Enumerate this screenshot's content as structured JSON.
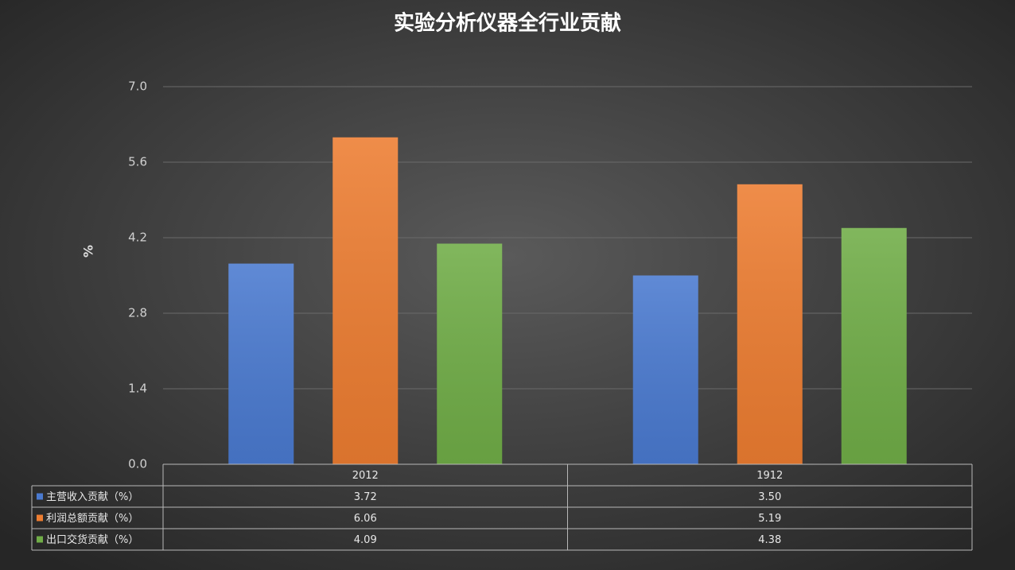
{
  "chart_data": {
    "type": "bar",
    "title": "实验分析仪器全行业贡献",
    "ylabel": "%",
    "categories": [
      "2012",
      "1912"
    ],
    "series": [
      {
        "name": "主营收入贡献（%）",
        "color": "#4a7ad0",
        "values": [
          3.72,
          3.5
        ],
        "value_labels": [
          "3.72",
          "3.50"
        ]
      },
      {
        "name": "利润总额贡献（%）",
        "color": "#ed7d31",
        "values": [
          6.06,
          5.19
        ],
        "value_labels": [
          "6.06",
          "5.19"
        ]
      },
      {
        "name": "出口交货贡献（%）",
        "color": "#70ad47",
        "values": [
          4.09,
          4.38
        ],
        "value_labels": [
          "4.09",
          "4.38"
        ]
      }
    ],
    "ylim": [
      0,
      7
    ],
    "yticks": [
      {
        "value": 0,
        "label": "0.0"
      },
      1.4,
      2.8,
      4.2,
      5.6,
      {
        "value": 7,
        "label": "7.0"
      }
    ],
    "grid": true
  }
}
